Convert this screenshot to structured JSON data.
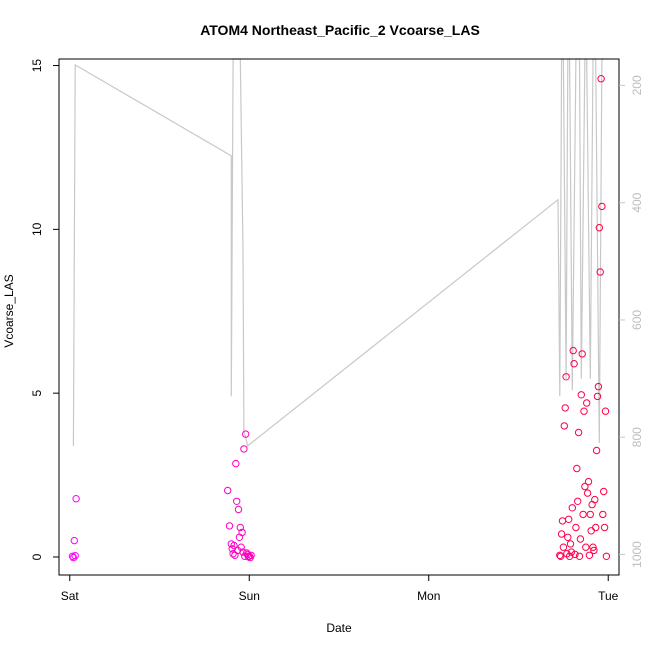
{
  "chart_data": {
    "type": "scatter",
    "title": "ATOM4 Northeast_Pacific_2 Vcoarse_LAS",
    "xlabel": "Date",
    "ylabel": "Vcoarse_LAS",
    "x_ticks": [
      "Sat",
      "Sun",
      "Mon",
      "Tue"
    ],
    "x_range_days": [
      -0.06,
      3.06
    ],
    "ylim": [
      -0.55,
      15.2
    ],
    "y_ticks": [
      0,
      5,
      10,
      15
    ],
    "y2_ticks": [
      200,
      400,
      600,
      800,
      1000
    ],
    "y2_range": [
      1035,
      155
    ],
    "y2_color": "#c8c8c8",
    "point_color_start": "#ff00ff",
    "point_color_end": "#ff0040",
    "series": [
      {
        "type": "points",
        "points": [
          [
            0.015,
            0.02
          ],
          [
            0.02,
            -0.02
          ],
          [
            0.025,
            0.5
          ],
          [
            0.03,
            0.04
          ],
          [
            0.035,
            1.78
          ],
          [
            0.88,
            2.03
          ],
          [
            0.89,
            0.95
          ],
          [
            0.9,
            0.4
          ],
          [
            0.905,
            0.25
          ],
          [
            0.91,
            0.1
          ],
          [
            0.915,
            0.35
          ],
          [
            0.92,
            0.05
          ],
          [
            0.925,
            2.85
          ],
          [
            0.93,
            1.7
          ],
          [
            0.935,
            0.2
          ],
          [
            0.94,
            1.45
          ],
          [
            0.945,
            0.6
          ],
          [
            0.95,
            0.9
          ],
          [
            0.955,
            0.3
          ],
          [
            0.96,
            0.75
          ],
          [
            0.965,
            0.15
          ],
          [
            0.97,
            3.3
          ],
          [
            0.975,
            0.02
          ],
          [
            0.98,
            3.75
          ],
          [
            0.985,
            0.12
          ],
          [
            0.99,
            0.08
          ],
          [
            0.995,
            0.01
          ],
          [
            1.0,
            0.03
          ],
          [
            1.005,
            -0.02
          ],
          [
            1.01,
            0.05
          ],
          [
            2.73,
            0.05
          ],
          [
            2.735,
            0.02
          ],
          [
            2.74,
            0.7
          ],
          [
            2.745,
            1.1
          ],
          [
            2.75,
            0.3
          ],
          [
            2.755,
            4.0
          ],
          [
            2.76,
            4.55
          ],
          [
            2.765,
            5.5
          ],
          [
            2.77,
            0.1
          ],
          [
            2.775,
            0.6
          ],
          [
            2.78,
            1.15
          ],
          [
            2.785,
            0.02
          ],
          [
            2.79,
            0.4
          ],
          [
            2.795,
            0.15
          ],
          [
            2.8,
            1.5
          ],
          [
            2.805,
            6.3
          ],
          [
            2.81,
            5.9
          ],
          [
            2.815,
            0.08
          ],
          [
            2.82,
            0.9
          ],
          [
            2.825,
            2.7
          ],
          [
            2.83,
            1.7
          ],
          [
            2.835,
            3.8
          ],
          [
            2.84,
            0.02
          ],
          [
            2.845,
            0.55
          ],
          [
            2.85,
            4.95
          ],
          [
            2.855,
            6.2
          ],
          [
            2.86,
            1.3
          ],
          [
            2.865,
            4.45
          ],
          [
            2.87,
            2.15
          ],
          [
            2.875,
            0.3
          ],
          [
            2.88,
            4.7
          ],
          [
            2.885,
            1.95
          ],
          [
            2.89,
            2.3
          ],
          [
            2.895,
            0.05
          ],
          [
            2.9,
            1.3
          ],
          [
            2.905,
            0.8
          ],
          [
            2.91,
            1.6
          ],
          [
            2.915,
            0.3
          ],
          [
            2.92,
            0.2
          ],
          [
            2.925,
            1.75
          ],
          [
            2.93,
            0.9
          ],
          [
            2.935,
            3.25
          ],
          [
            2.94,
            4.9
          ],
          [
            2.945,
            5.2
          ],
          [
            2.95,
            10.05
          ],
          [
            2.955,
            8.7
          ],
          [
            2.96,
            14.6
          ],
          [
            2.965,
            10.7
          ],
          [
            2.97,
            1.3
          ],
          [
            2.975,
            2.0
          ],
          [
            2.98,
            0.9
          ],
          [
            2.985,
            4.45
          ],
          [
            2.99,
            0.02
          ]
        ]
      },
      {
        "type": "line",
        "axis": "right",
        "points": [
          [
            0.02,
            815
          ],
          [
            0.03,
            165
          ],
          [
            0.9,
            320
          ],
          [
            0.9,
            730
          ],
          [
            0.91,
            155
          ],
          [
            0.92,
            155
          ],
          [
            0.93,
            155
          ],
          [
            0.935,
            155
          ],
          [
            0.95,
            155
          ],
          [
            0.965,
            480
          ],
          [
            0.97,
            790
          ],
          [
            0.98,
            800
          ],
          [
            0.99,
            815
          ],
          [
            2.72,
            395
          ],
          [
            2.73,
            730
          ],
          [
            2.74,
            155
          ],
          [
            2.75,
            155
          ],
          [
            2.765,
            700
          ],
          [
            2.775,
            155
          ],
          [
            2.785,
            155
          ],
          [
            2.8,
            720
          ],
          [
            2.82,
            155
          ],
          [
            2.84,
            155
          ],
          [
            2.85,
            700
          ],
          [
            2.87,
            155
          ],
          [
            2.88,
            155
          ],
          [
            2.9,
            700
          ],
          [
            2.915,
            155
          ],
          [
            2.93,
            155
          ],
          [
            2.95,
            810
          ],
          [
            2.965,
            155
          ],
          [
            2.98,
            155
          ]
        ]
      }
    ]
  }
}
